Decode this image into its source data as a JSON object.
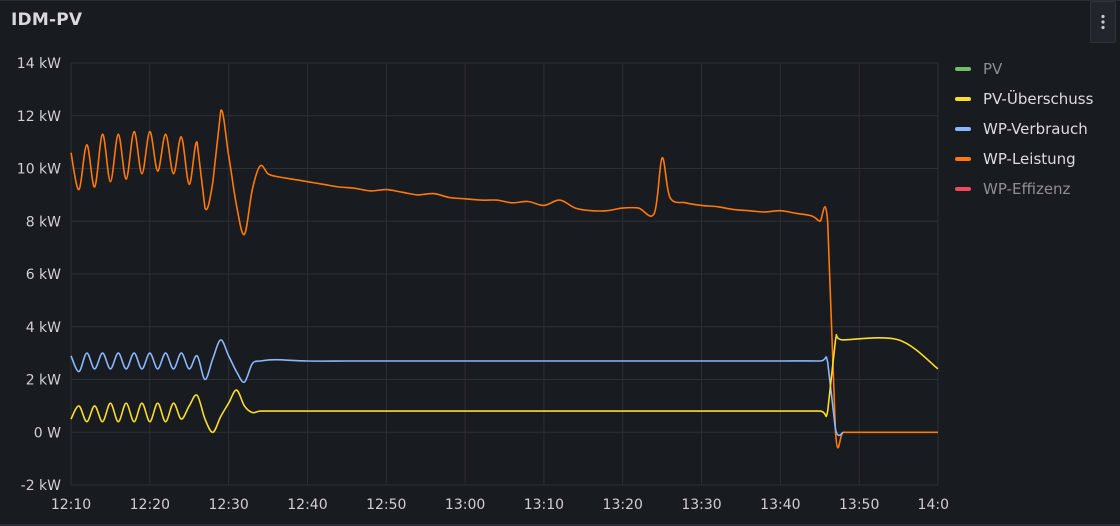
{
  "panel": {
    "title": "IDM-PV",
    "menu_icon": "vertical-dots-icon"
  },
  "legend": [
    {
      "label": "PV",
      "color": "#73bf69",
      "state": "muted"
    },
    {
      "label": "PV-Überschuss",
      "color": "#fade2a",
      "state": "active"
    },
    {
      "label": "WP-Verbrauch",
      "color": "#8ab8ff",
      "state": "active"
    },
    {
      "label": "WP-Leistung",
      "color": "#ff780a",
      "state": "active"
    },
    {
      "label": "WP-Effizenz",
      "color": "#f2495c",
      "state": "muted"
    }
  ],
  "chart_data": {
    "type": "line",
    "xlabel": "",
    "ylabel": "",
    "xlim": [
      "12:10",
      "14:00"
    ],
    "ylim": [
      -2,
      14
    ],
    "x_ticks": [
      "12:10",
      "12:20",
      "12:30",
      "12:40",
      "12:50",
      "13:00",
      "13:10",
      "13:20",
      "13:30",
      "13:40",
      "13:50",
      "14:0"
    ],
    "y_ticks": [
      "14 kW",
      "12 kW",
      "10 kW",
      "8 kW",
      "6 kW",
      "4 kW",
      "2 kW",
      "0 W",
      "-2 kW"
    ],
    "grid": true,
    "legend_position": "right",
    "series": [
      {
        "name": "WP-Leistung",
        "color": "#ff780a",
        "x": [
          "12:10",
          "12:11",
          "12:12",
          "12:13",
          "12:14",
          "12:15",
          "12:16",
          "12:17",
          "12:18",
          "12:19",
          "12:20",
          "12:21",
          "12:22",
          "12:23",
          "12:24",
          "12:25",
          "12:26",
          "12:27",
          "12:28",
          "12:29",
          "12:30",
          "12:31",
          "12:32",
          "12:33",
          "12:34",
          "12:35",
          "12:36",
          "12:38",
          "12:40",
          "12:42",
          "12:44",
          "12:46",
          "12:48",
          "12:50",
          "12:52",
          "12:54",
          "12:56",
          "12:58",
          "13:00",
          "13:02",
          "13:04",
          "13:06",
          "13:08",
          "13:10",
          "13:12",
          "13:14",
          "13:16",
          "13:18",
          "13:20",
          "13:22",
          "13:24",
          "13:25",
          "13:26",
          "13:28",
          "13:30",
          "13:32",
          "13:34",
          "13:36",
          "13:38",
          "13:40",
          "13:42",
          "13:44",
          "13:45",
          "13:46",
          "13:47",
          "13:48",
          "13:50",
          "13:55",
          "14:00"
        ],
        "values": [
          10.6,
          9.2,
          10.9,
          9.3,
          11.3,
          9.5,
          11.3,
          9.6,
          11.4,
          9.8,
          11.4,
          9.9,
          11.3,
          9.8,
          11.2,
          9.4,
          11.0,
          8.5,
          9.5,
          12.2,
          10.5,
          8.6,
          7.5,
          9.2,
          10.1,
          9.8,
          9.7,
          9.6,
          9.5,
          9.4,
          9.3,
          9.25,
          9.15,
          9.2,
          9.1,
          9.0,
          9.05,
          8.9,
          8.85,
          8.8,
          8.8,
          8.7,
          8.75,
          8.6,
          8.8,
          8.5,
          8.4,
          8.4,
          8.5,
          8.5,
          8.3,
          10.4,
          8.9,
          8.7,
          8.6,
          8.55,
          8.45,
          8.4,
          8.35,
          8.4,
          8.3,
          8.2,
          8.0,
          7.95,
          0.0,
          0.0,
          0.0,
          0.0,
          0.0
        ]
      },
      {
        "name": "WP-Verbrauch",
        "color": "#8ab8ff",
        "x": [
          "12:10",
          "12:11",
          "12:12",
          "12:13",
          "12:14",
          "12:15",
          "12:16",
          "12:17",
          "12:18",
          "12:19",
          "12:20",
          "12:21",
          "12:22",
          "12:23",
          "12:24",
          "12:25",
          "12:26",
          "12:27",
          "12:28",
          "12:29",
          "12:30",
          "12:31",
          "12:32",
          "12:33",
          "12:34",
          "12:36",
          "12:40",
          "12:45",
          "12:50",
          "12:55",
          "13:00",
          "13:05",
          "13:10",
          "13:15",
          "13:20",
          "13:25",
          "13:30",
          "13:35",
          "13:40",
          "13:45",
          "13:46",
          "13:47",
          "13:48"
        ],
        "values": [
          2.9,
          2.3,
          3.0,
          2.4,
          3.0,
          2.4,
          3.0,
          2.4,
          3.0,
          2.4,
          3.0,
          2.4,
          3.0,
          2.4,
          3.0,
          2.4,
          2.9,
          2.0,
          2.8,
          3.5,
          2.9,
          2.3,
          1.9,
          2.6,
          2.7,
          2.75,
          2.7,
          2.7,
          2.7,
          2.7,
          2.7,
          2.7,
          2.7,
          2.7,
          2.7,
          2.7,
          2.7,
          2.7,
          2.7,
          2.7,
          2.65,
          0.1,
          0.0
        ]
      },
      {
        "name": "PV-Überschuss",
        "color": "#fade2a",
        "x": [
          "12:10",
          "12:11",
          "12:12",
          "12:13",
          "12:14",
          "12:15",
          "12:16",
          "12:17",
          "12:18",
          "12:19",
          "12:20",
          "12:21",
          "12:22",
          "12:23",
          "12:24",
          "12:25",
          "12:26",
          "12:27",
          "12:28",
          "12:29",
          "12:30",
          "12:31",
          "12:32",
          "12:33",
          "12:34",
          "12:36",
          "12:40",
          "12:45",
          "12:50",
          "12:55",
          "13:00",
          "13:05",
          "13:10",
          "13:15",
          "13:20",
          "13:25",
          "13:30",
          "13:35",
          "13:40",
          "13:45",
          "13:46",
          "13:47",
          "13:48",
          "13:55",
          "14:00"
        ],
        "values": [
          0.5,
          1.0,
          0.4,
          1.0,
          0.4,
          1.1,
          0.4,
          1.1,
          0.4,
          1.1,
          0.4,
          1.1,
          0.4,
          1.1,
          0.5,
          1.0,
          1.4,
          0.5,
          0.0,
          0.6,
          1.1,
          1.6,
          1.0,
          0.75,
          0.8,
          0.8,
          0.8,
          0.8,
          0.8,
          0.8,
          0.8,
          0.8,
          0.8,
          0.8,
          0.8,
          0.8,
          0.8,
          0.8,
          0.8,
          0.8,
          0.8,
          3.5,
          3.5,
          3.5,
          2.4
        ]
      }
    ]
  }
}
